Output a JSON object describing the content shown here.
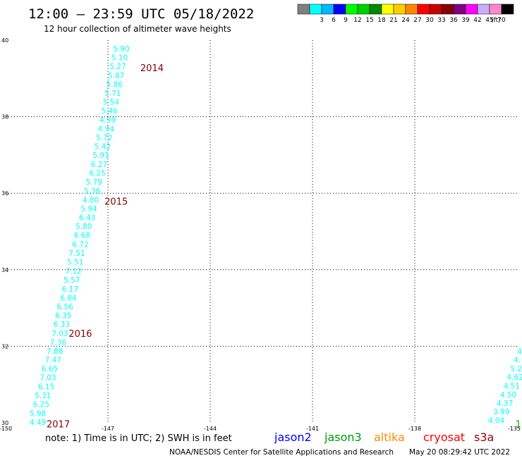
{
  "header": {
    "title": "12:00 – 23:59 UTC 05/18/2022",
    "subtitle": "12 hour collection of altimeter wave heights"
  },
  "colorbar": {
    "unit": "(ft)",
    "bins": [
      {
        "label": "",
        "color": "#808080"
      },
      {
        "label": "3",
        "color": "#00ffff"
      },
      {
        "label": "6",
        "color": "#00b8ff"
      },
      {
        "label": "9",
        "color": "#0000ff"
      },
      {
        "label": "12",
        "color": "#00ff00"
      },
      {
        "label": "15",
        "color": "#00d000"
      },
      {
        "label": "18",
        "color": "#008800"
      },
      {
        "label": "21",
        "color": "#ffff00"
      },
      {
        "label": "24",
        "color": "#ffcc00"
      },
      {
        "label": "27",
        "color": "#ff8800"
      },
      {
        "label": "30",
        "color": "#ff0000"
      },
      {
        "label": "33",
        "color": "#cc0000"
      },
      {
        "label": "36",
        "color": "#880000"
      },
      {
        "label": "39",
        "color": "#800080"
      },
      {
        "label": "42",
        "color": "#ff00ff"
      },
      {
        "label": "45",
        "color": "#ccaaff"
      },
      {
        "label": "70",
        "color": "#ff88cc"
      },
      {
        "label": "",
        "color": "#000000"
      }
    ]
  },
  "chart_data": {
    "type": "scatter",
    "xlim": [
      -150,
      -135
    ],
    "ylim": [
      30,
      40
    ],
    "x_ticks": [
      "-150",
      "-147",
      "-144",
      "-141",
      "-138",
      "-135"
    ],
    "x_tick_values": [
      -150,
      -147,
      -144,
      -141,
      -138,
      -135
    ],
    "y_ticks": [
      "30",
      "32",
      "34",
      "36",
      "38",
      "40"
    ],
    "y_tick_values": [
      30,
      32,
      34,
      36,
      38,
      40
    ],
    "grid": true,
    "point_color": "#00ffff",
    "series": [
      {
        "values": [
          {
            "x": -149.3,
            "y": 30.0,
            "v": "4.49"
          },
          {
            "x": -149.3,
            "y": 30.23,
            "v": "5.98"
          },
          {
            "x": -149.2,
            "y": 30.47,
            "v": "6.25"
          },
          {
            "x": -149.15,
            "y": 30.7,
            "v": "5.31"
          },
          {
            "x": -149.05,
            "y": 30.93,
            "v": "6.15"
          },
          {
            "x": -149.0,
            "y": 31.17,
            "v": "7.03"
          },
          {
            "x": -148.95,
            "y": 31.4,
            "v": "6.65"
          },
          {
            "x": -148.85,
            "y": 31.63,
            "v": "7.47"
          },
          {
            "x": -148.8,
            "y": 31.86,
            "v": "7.88"
          },
          {
            "x": -148.7,
            "y": 32.09,
            "v": "7.36"
          },
          {
            "x": -148.65,
            "y": 32.32,
            "v": "7.03"
          },
          {
            "x": -148.6,
            "y": 32.56,
            "v": "6.33"
          },
          {
            "x": -148.55,
            "y": 32.79,
            "v": "6.35"
          },
          {
            "x": -148.5,
            "y": 33.02,
            "v": "6.56"
          },
          {
            "x": -148.4,
            "y": 33.25,
            "v": "6.84"
          },
          {
            "x": -148.35,
            "y": 33.48,
            "v": "6.17"
          },
          {
            "x": -148.3,
            "y": 33.72,
            "v": "5.57"
          },
          {
            "x": -148.25,
            "y": 33.95,
            "v": "7.12"
          },
          {
            "x": -148.2,
            "y": 34.19,
            "v": "5.51"
          },
          {
            "x": -148.15,
            "y": 34.42,
            "v": "7.51"
          },
          {
            "x": -148.05,
            "y": 34.65,
            "v": "6.72"
          },
          {
            "x": -148.0,
            "y": 34.89,
            "v": "6.68"
          },
          {
            "x": -147.95,
            "y": 35.12,
            "v": "5.80"
          },
          {
            "x": -147.85,
            "y": 35.35,
            "v": "6.43"
          },
          {
            "x": -147.8,
            "y": 35.58,
            "v": "5.94"
          },
          {
            "x": -147.75,
            "y": 35.81,
            "v": "4.80"
          },
          {
            "x": -147.7,
            "y": 36.05,
            "v": "5.36"
          },
          {
            "x": -147.65,
            "y": 36.28,
            "v": "5.79"
          },
          {
            "x": -147.55,
            "y": 36.51,
            "v": "6.25"
          },
          {
            "x": -147.5,
            "y": 36.74,
            "v": "6.27"
          },
          {
            "x": -147.45,
            "y": 36.98,
            "v": "5.93"
          },
          {
            "x": -147.4,
            "y": 37.21,
            "v": "5.42"
          },
          {
            "x": -147.35,
            "y": 37.44,
            "v": "5.72"
          },
          {
            "x": -147.3,
            "y": 37.67,
            "v": "4.94"
          },
          {
            "x": -147.25,
            "y": 37.9,
            "v": "4.99"
          },
          {
            "x": -147.2,
            "y": 38.14,
            "v": "5.46"
          },
          {
            "x": -147.15,
            "y": 38.37,
            "v": "5.54"
          },
          {
            "x": -147.1,
            "y": 38.6,
            "v": "5.71"
          },
          {
            "x": -147.05,
            "y": 38.83,
            "v": "5.86"
          },
          {
            "x": -147.0,
            "y": 39.06,
            "v": "5.87"
          },
          {
            "x": -146.95,
            "y": 39.3,
            "v": "5.27"
          },
          {
            "x": -146.9,
            "y": 39.53,
            "v": "5.10"
          },
          {
            "x": -146.85,
            "y": 39.76,
            "v": "5.90"
          }
        ]
      },
      {
        "values": [
          {
            "x": -135.85,
            "y": 30.05,
            "v": "4.04"
          },
          {
            "x": -135.7,
            "y": 30.28,
            "v": "3.99"
          },
          {
            "x": -135.6,
            "y": 30.5,
            "v": "4.37"
          },
          {
            "x": -135.5,
            "y": 30.72,
            "v": "4.50"
          },
          {
            "x": -135.4,
            "y": 30.95,
            "v": "4.51"
          },
          {
            "x": -135.3,
            "y": 31.18,
            "v": "4.62"
          },
          {
            "x": -135.2,
            "y": 31.4,
            "v": "5.2"
          },
          {
            "x": -135.1,
            "y": 31.63,
            "v": "4."
          },
          {
            "x": -135.0,
            "y": 31.85,
            "v": "4."
          }
        ]
      }
    ],
    "annotations": [
      {
        "text": "2014",
        "x": -146.05,
        "y": 39.28,
        "color": "#800000"
      },
      {
        "text": "2015",
        "x": -147.1,
        "y": 35.79,
        "color": "#800000"
      },
      {
        "text": "2016",
        "x": -148.15,
        "y": 32.34,
        "color": "#800000"
      },
      {
        "text": "2017",
        "x": -148.8,
        "y": 29.97,
        "color": "#800000"
      },
      {
        "text": "1",
        "x": -135.05,
        "y": 29.97,
        "color": "#00aa00"
      }
    ]
  },
  "footer": {
    "note": "note: 1) Time is in UTC; 2) SWH is in feet",
    "legend": [
      {
        "label": "jason2",
        "color": "#0000ff"
      },
      {
        "label": "jason3",
        "color": "#009900"
      },
      {
        "label": "altika",
        "color": "#ff8800"
      },
      {
        "label": "cryosat",
        "color": "#ff0000"
      },
      {
        "label": "s3a",
        "color": "#990000"
      }
    ],
    "credit": "NOAA/NESDIS Center for Satellite Applications and Research",
    "generated": "May 20 08:29:42 UTC 2022"
  }
}
